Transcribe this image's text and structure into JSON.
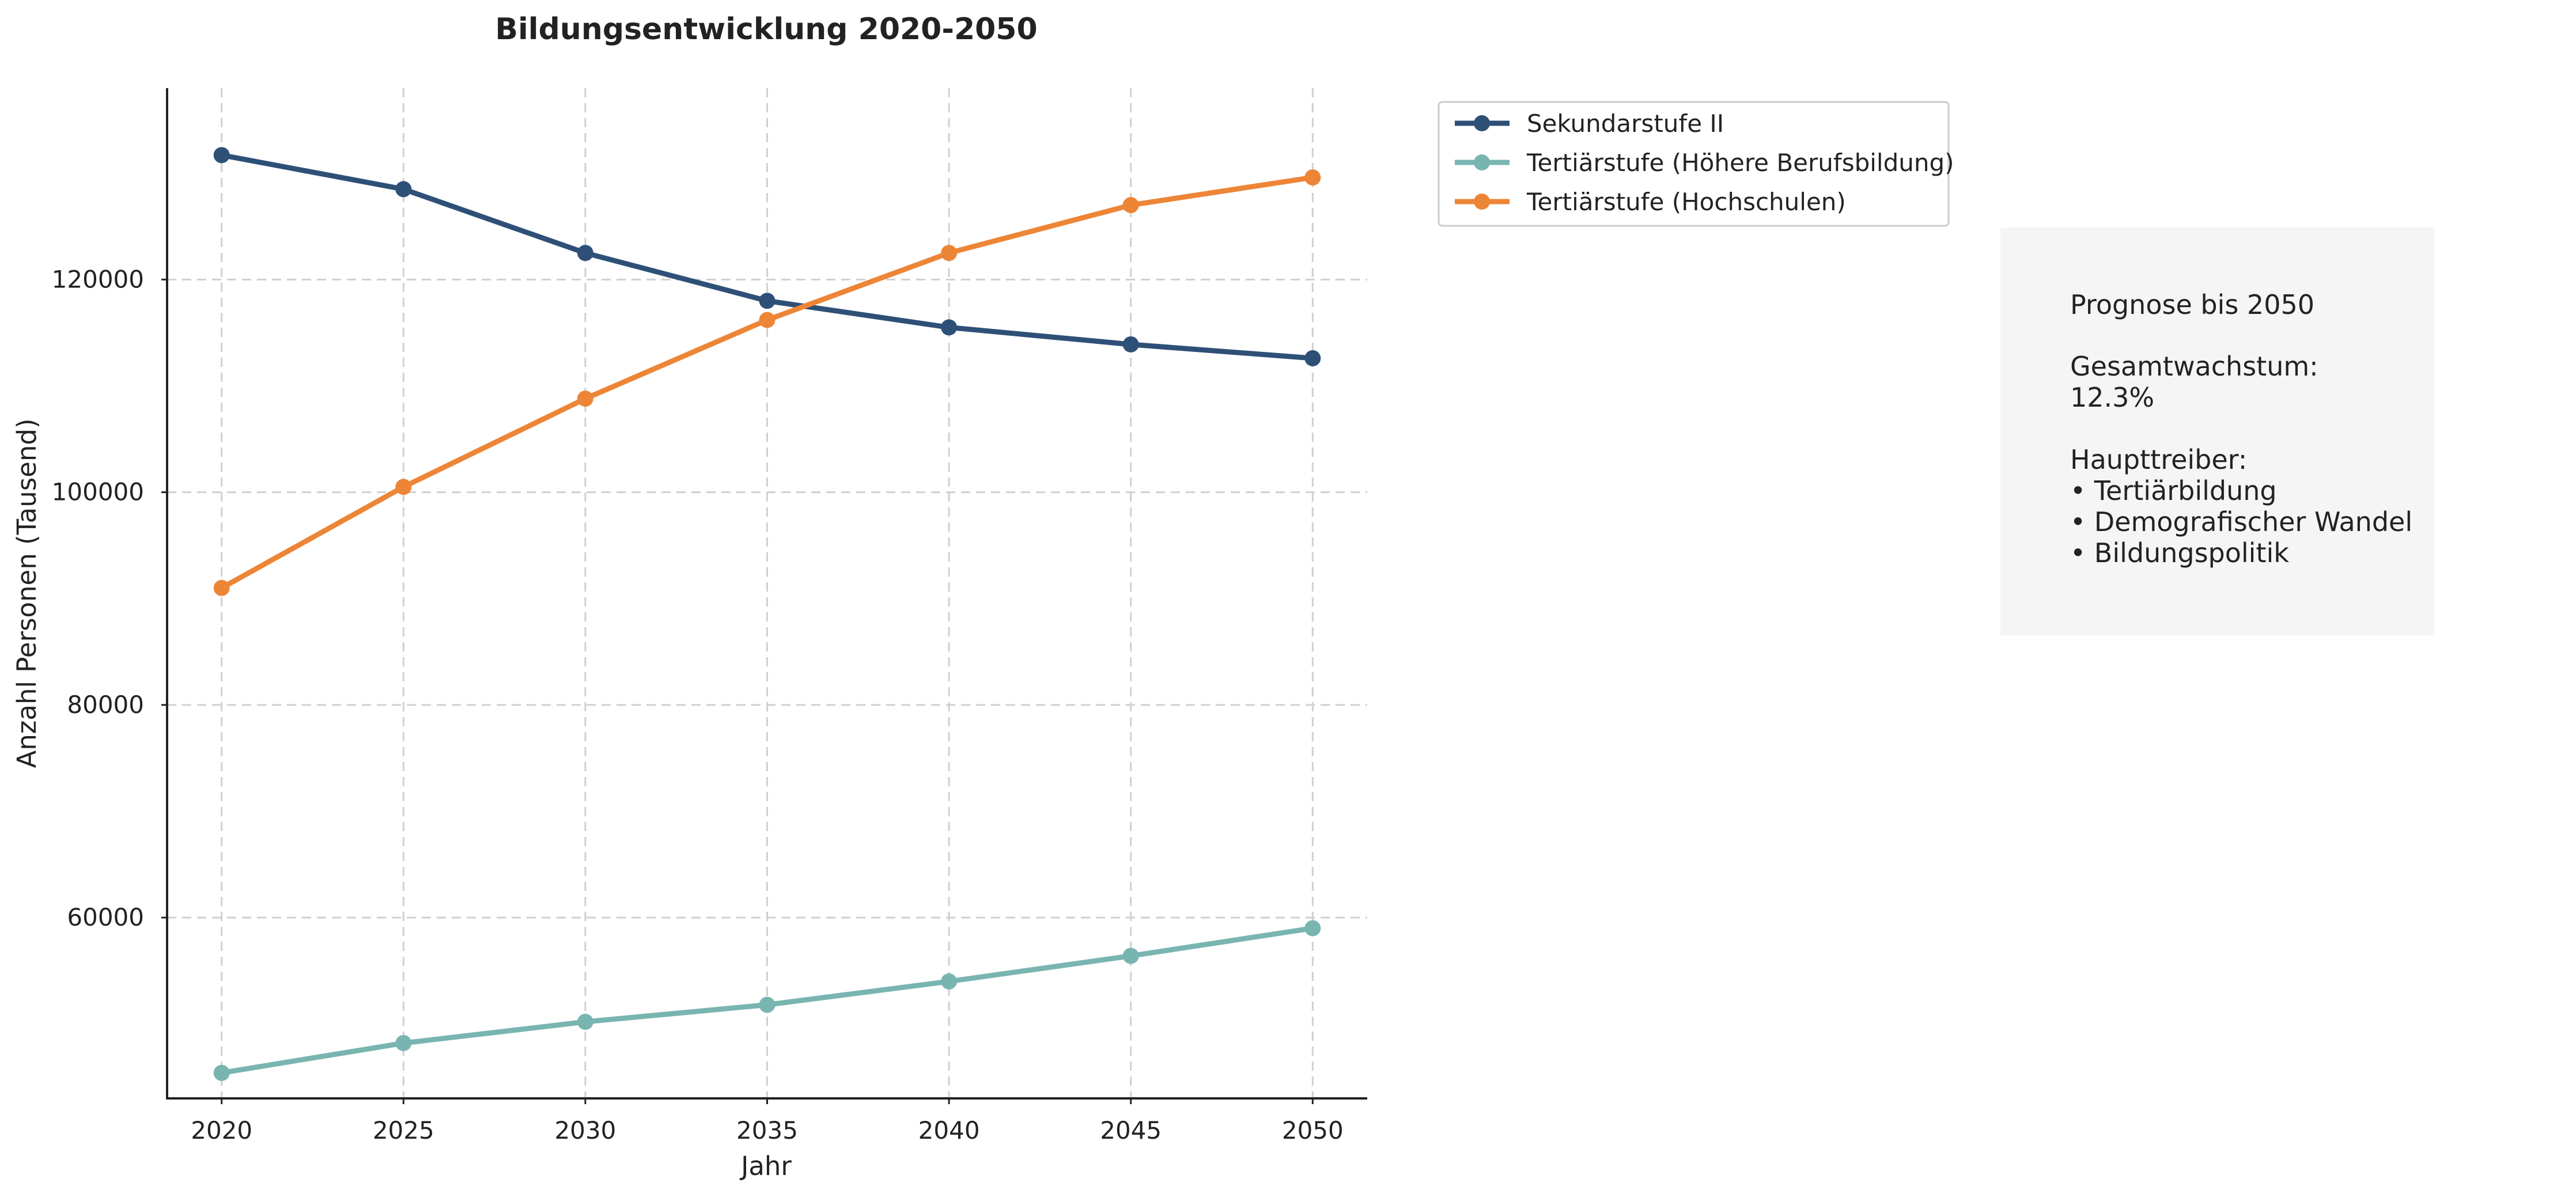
{
  "chart_data": {
    "type": "line",
    "title": "Bildungsentwicklung 2020-2050",
    "xlabel": "Jahr",
    "ylabel": "Anzahl Personen (Tausend)",
    "x": [
      2020,
      2025,
      2030,
      2035,
      2040,
      2045,
      2050
    ],
    "xticks": [
      "2020",
      "2025",
      "2030",
      "2035",
      "2040",
      "2045",
      "2050"
    ],
    "yticks": [
      "60000",
      "80000",
      "100000",
      "120000"
    ],
    "ytick_values": [
      60000,
      80000,
      100000,
      120000
    ],
    "xlim": [
      2018.5,
      2051.5
    ],
    "ylim": [
      43000,
      138000
    ],
    "grid": true,
    "legend_position": "outside-top-right",
    "series": [
      {
        "name": "Sekundarstufe II",
        "color": "#2e5077",
        "values": [
          131700,
          128500,
          122500,
          118000,
          115500,
          113900,
          112600
        ]
      },
      {
        "name": "Tertiärstufe (Höhere Berufsbildung)",
        "color": "#79b5b0",
        "values": [
          45400,
          48200,
          50200,
          51800,
          54000,
          56400,
          59000
        ]
      },
      {
        "name": "Tertiärstufe (Hochschulen)",
        "color": "#ed8537",
        "values": [
          91000,
          100500,
          108800,
          116200,
          122500,
          127000,
          129600
        ]
      }
    ]
  },
  "info_box": {
    "heading": "Prognose bis 2050",
    "growth_label": "Gesamtwachstum:",
    "growth_value": "12.3%",
    "drivers_label": "Haupttreiber:",
    "drivers": [
      "• Tertiärbildung",
      "• Demografischer Wandel",
      "• Bildungspolitik"
    ]
  }
}
